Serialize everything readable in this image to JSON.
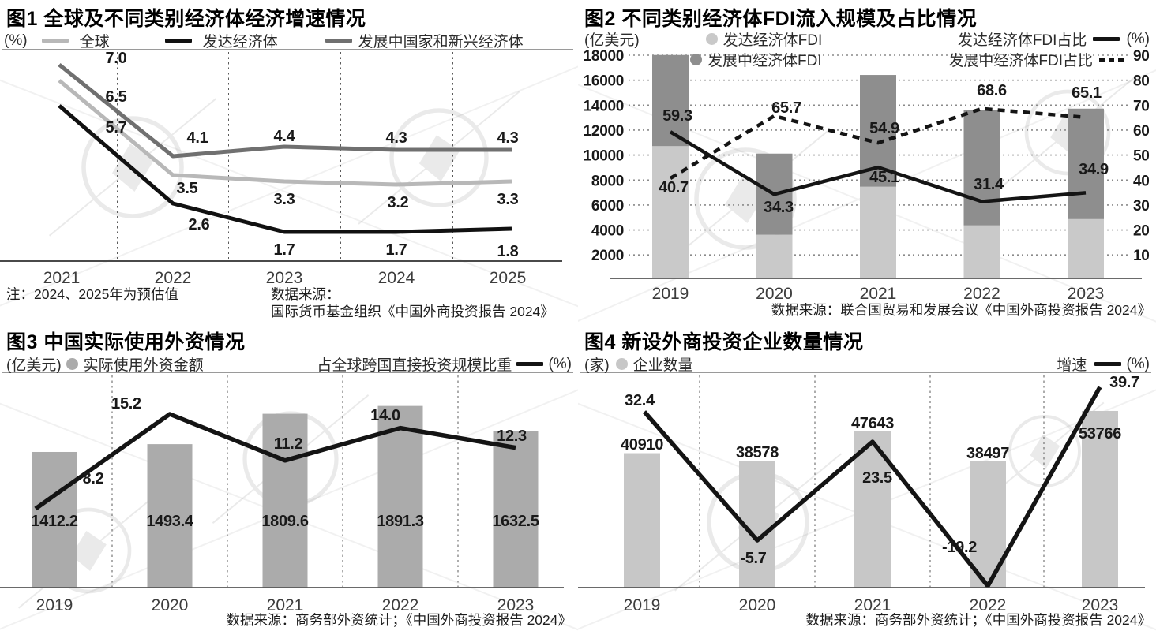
{
  "accent_colors": {
    "black_line": "#141414",
    "global_line": "#b8b8b8",
    "developing_line": "#707070",
    "light_bar": "#c9c9c9",
    "dark_bar": "#8e8e8e",
    "mid_bar": "#ababab",
    "bar4": "#c7c7c7"
  },
  "chart_data": [
    {
      "id": "fig1",
      "type": "line",
      "title": "图1 全球及不同类别经济体经济增速情况",
      "unit": "(%)",
      "x": [
        "2021",
        "2022",
        "2023",
        "2024",
        "2025"
      ],
      "series": [
        {
          "name": "全球",
          "color": "#b8b8b8",
          "values": [
            6.5,
            3.5,
            3.3,
            3.2,
            3.3
          ],
          "labels": [
            "6.5",
            "3.5",
            "3.3",
            "3.2",
            "3.3"
          ]
        },
        {
          "name": "发达经济体",
          "color": "#111111",
          "values": [
            5.7,
            2.6,
            1.7,
            1.7,
            1.8
          ],
          "labels": [
            "5.7",
            "2.6",
            "1.7",
            "1.7",
            "1.8"
          ]
        },
        {
          "name": "发展中国家和新兴经济体",
          "color": "#707070",
          "values": [
            7.0,
            4.1,
            4.4,
            4.3,
            4.3
          ],
          "labels": [
            "7.0",
            "4.1",
            "4.4",
            "4.3",
            "4.3"
          ]
        }
      ],
      "ylim": [
        1.0,
        7.5
      ],
      "grid": "dashed-vertical-separators",
      "note": "注：2024、2025年为预估值",
      "source_prefix": "数据来源：",
      "source": "国际货币基金组织《中国外商投资报告 2024》"
    },
    {
      "id": "fig2",
      "type": "stacked-bar+line",
      "title": "图2 不同类别经济体FDI流入规模及占比情况",
      "unit_left": "(亿美元)",
      "unit_right": "(%)",
      "x": [
        "2019",
        "2020",
        "2021",
        "2022",
        "2023"
      ],
      "bars": [
        {
          "name": "发达经济体FDI",
          "color": "#c9c9c9",
          "values_estimated": [
            10600,
            3500,
            7350,
            4250,
            4750
          ]
        },
        {
          "name": "发展中经济体FDI",
          "color": "#8e8e8e",
          "values_estimated": [
            7300,
            6500,
            8950,
            9250,
            8850
          ]
        }
      ],
      "lines": [
        {
          "name": "发达经济体FDI占比",
          "style": "solid",
          "color": "#141414",
          "values": [
            59.3,
            34.3,
            45.1,
            31.4,
            34.9
          ],
          "labels": [
            "59.3",
            "34.3",
            "45.1",
            "31.4",
            "34.9"
          ]
        },
        {
          "name": "发展中经济体FDI占比",
          "style": "dashed",
          "color": "#141414",
          "values": [
            40.7,
            65.7,
            54.9,
            68.6,
            65.1
          ],
          "labels": [
            "40.7",
            "65.7",
            "54.9",
            "68.6",
            "65.1"
          ]
        }
      ],
      "left_axis_ticks": [
        "18000",
        "16000",
        "14000",
        "12000",
        "10000",
        "8000",
        "6000",
        "4000",
        "2000"
      ],
      "right_axis_ticks": [
        "90",
        "80",
        "70",
        "60",
        "50",
        "40",
        "30",
        "20",
        "10"
      ],
      "left_ylim": [
        0,
        18000
      ],
      "right_ylim": [
        0,
        90
      ],
      "grid": "dotted-horizontal",
      "source": "数据来源：联合国贸易和发展会议《中国外商投资报告 2024》"
    },
    {
      "id": "fig3",
      "type": "bar+line",
      "title": "图3 中国实际使用外资情况",
      "unit_left": "(亿美元)",
      "unit_right": "(%)",
      "x": [
        "2019",
        "2020",
        "2021",
        "2022",
        "2023"
      ],
      "bar": {
        "name": "实际使用外资金额",
        "color": "#ababab",
        "values": [
          1412.2,
          1493.4,
          1809.6,
          1891.3,
          1632.5
        ],
        "labels": [
          "1412.2",
          "1493.4",
          "1809.6",
          "1891.3",
          "1632.5"
        ]
      },
      "line": {
        "name": "占全球跨国直接投资规模比重",
        "color": "#141414",
        "values": [
          8.2,
          15.2,
          11.2,
          14.0,
          12.3
        ],
        "labels": [
          "8.2",
          "15.2",
          "11.2",
          "14.0",
          "12.3"
        ]
      },
      "grid": "dashed-vertical-separators",
      "source": "数据来源：商务部外资统计；《中国外商投资报告 2024》"
    },
    {
      "id": "fig4",
      "type": "bar+line",
      "title": "图4 新设外商投资企业数量情况",
      "unit_left": "(家)",
      "unit_right": "(%)",
      "x": [
        "2019",
        "2020",
        "2021",
        "2022",
        "2023"
      ],
      "bar": {
        "name": "企业数量",
        "color": "#c7c7c7",
        "values": [
          40910,
          38578,
          47643,
          38497,
          53766
        ],
        "labels": [
          "40910",
          "38578",
          "47643",
          "38497",
          "53766"
        ]
      },
      "line": {
        "name": "增速",
        "color": "#141414",
        "values": [
          32.4,
          -5.7,
          23.5,
          -19.2,
          39.7
        ],
        "labels": [
          "32.4",
          "-5.7",
          "23.5",
          "-19.2",
          "39.7"
        ]
      },
      "grid": "dashed-vertical-separators",
      "source": "数据来源：商务部外资统计；《中国外商投资报告 2024》"
    }
  ]
}
